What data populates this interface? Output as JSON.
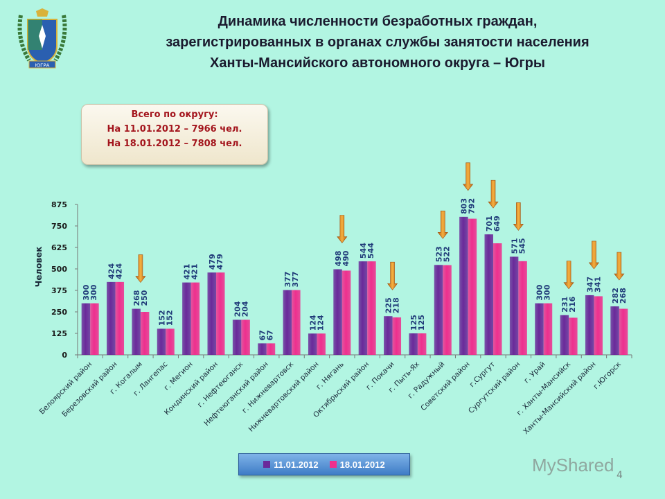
{
  "title_lines": [
    "Динамика численности безработных граждан,",
    "зарегистрированных в органах службы занятости населения",
    "Ханты-Мансийского автономного округа – Югры"
  ],
  "summary_box": {
    "heading": "Всего по округу:",
    "line1": "На 11.01.2012 – 7966 чел.",
    "line2": "На 18.01.2012 – 7808 чел."
  },
  "logo_text": "ЮГРА",
  "watermark": "MyShared",
  "page_number": "4",
  "chart_data": {
    "type": "bar",
    "ylabel": "Человек",
    "xlabel": "",
    "ylim": [
      0,
      875
    ],
    "yticks": [
      0,
      125,
      250,
      375,
      500,
      625,
      750,
      875
    ],
    "grid": false,
    "legend_position": "bottom",
    "categories": [
      "Белоярский район",
      "Березовский район",
      "г. Когалым",
      "г. Лангепас",
      "г. Мегион",
      "Кондинский район",
      "г. Нефтеюганск",
      "Нефтеюганский район",
      "г. Нижневартовск",
      "Нижневартовский район",
      "г. Нягань",
      "Октябрьский район",
      "г. Покачи",
      "г. Пыть-Ях",
      "г. Радужный",
      "Советский район",
      "г.Сургут",
      "Сургутский район",
      "г. Урай",
      "г. Ханты-Мансийск",
      "Ханты-Мансийский район",
      "г.Югорск"
    ],
    "series": [
      {
        "name": "11.01.2012",
        "color": "#6a2a9a",
        "values": [
          300,
          424,
          268,
          152,
          421,
          479,
          204,
          67,
          377,
          124,
          498,
          544,
          225,
          125,
          523,
          803,
          701,
          571,
          300,
          231,
          347,
          282
        ]
      },
      {
        "name": "18.01.2012",
        "color": "#ee2f8e",
        "values": [
          300,
          424,
          250,
          152,
          421,
          479,
          204,
          67,
          377,
          124,
          490,
          544,
          218,
          125,
          522,
          792,
          649,
          545,
          300,
          216,
          341,
          268
        ]
      }
    ],
    "decrease_arrows": [
      "г. Когалым",
      "г. Нягань",
      "г. Покачи",
      "г. Радужный",
      "Советский район",
      "г.Сургут",
      "Сургутский район",
      "г. Ханты-Мансийск",
      "Ханты-Мансийский район",
      "г.Югорск"
    ],
    "arrow_color": "#e08a1e",
    "label_color": "#1f3a78"
  }
}
